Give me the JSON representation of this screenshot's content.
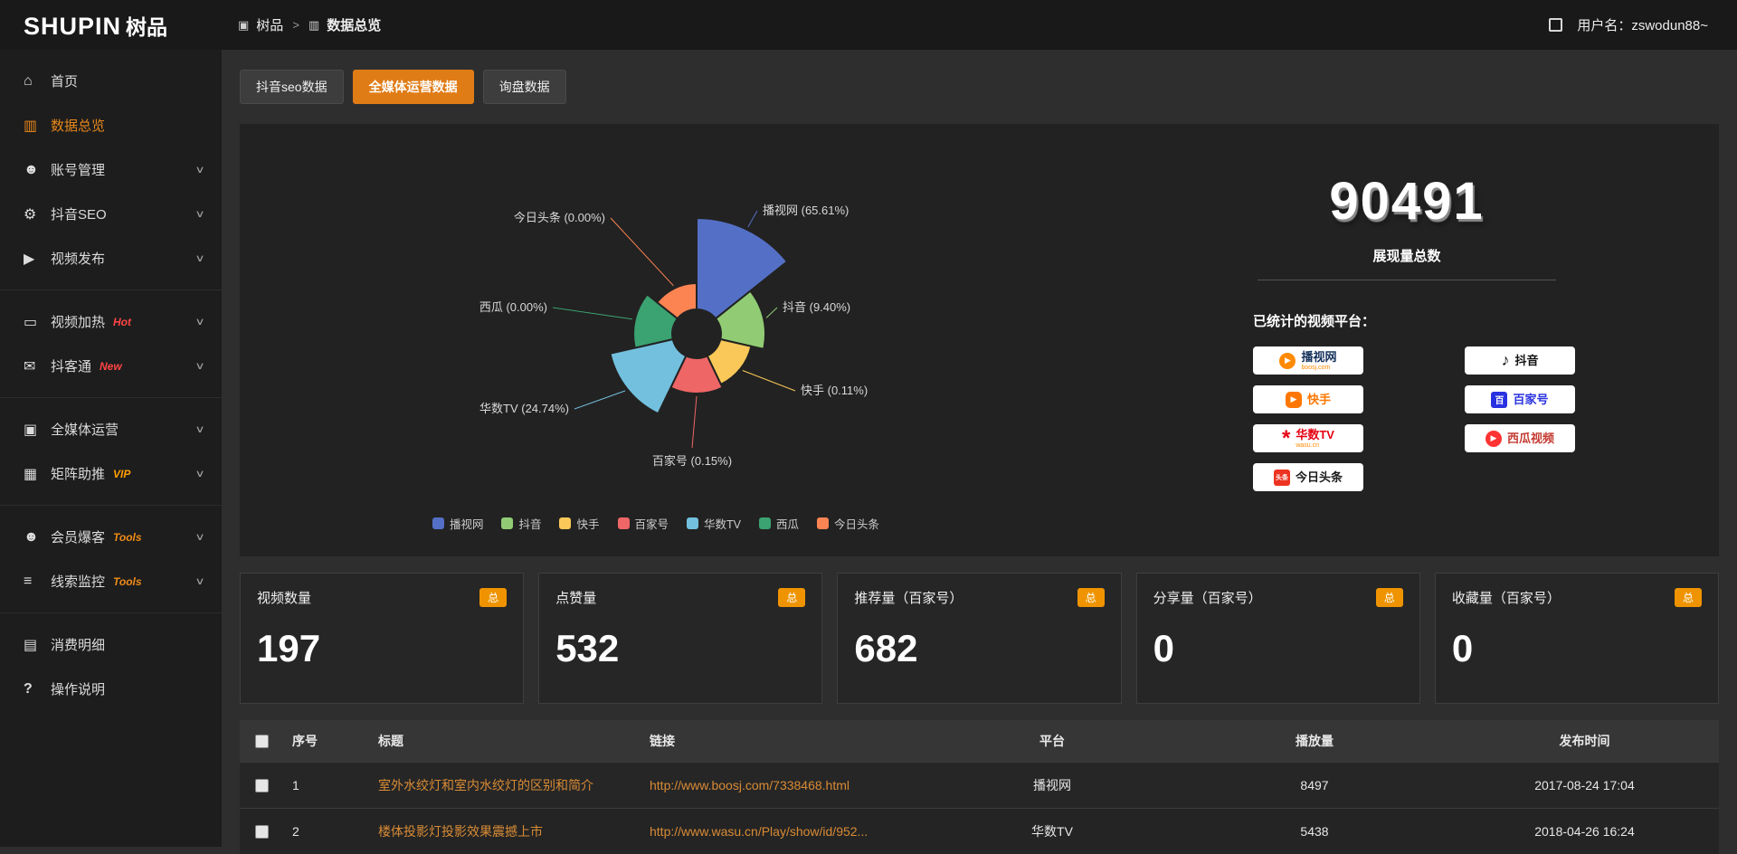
{
  "header": {
    "logo_en": "SHUPIN",
    "logo_cn": "树品",
    "breadcrumb_root": "树品",
    "breadcrumb_current": "数据总览",
    "username_label": "用户名：zswodun88~"
  },
  "sidebar": {
    "groups": [
      [
        {
          "id": "home",
          "label": "首页",
          "icon": "home",
          "active": false,
          "expandable": false
        },
        {
          "id": "data-overview",
          "label": "数据总览",
          "icon": "chart",
          "active": true,
          "expandable": false
        },
        {
          "id": "account-management",
          "label": "账号管理",
          "icon": "user",
          "active": false,
          "expandable": true
        },
        {
          "id": "douyin-seo",
          "label": "抖音SEO",
          "icon": "gear",
          "active": false,
          "expandable": true
        },
        {
          "id": "video-publish",
          "label": "视频发布",
          "icon": "video",
          "active": false,
          "expandable": true
        }
      ],
      [
        {
          "id": "video-heat",
          "label": "视频加热",
          "icon": "monitor",
          "active": false,
          "expandable": true,
          "tag": "Hot",
          "tag_color": "#ff4545"
        },
        {
          "id": "doukertong",
          "label": "抖客通",
          "icon": "chat",
          "active": false,
          "expandable": true,
          "tag": "New",
          "tag_color": "#ff4545"
        }
      ],
      [
        {
          "id": "media-operation",
          "label": "全媒体运营",
          "icon": "media",
          "active": false,
          "expandable": true
        },
        {
          "id": "matrix-boost",
          "label": "矩阵助推",
          "icon": "grid",
          "active": false,
          "expandable": true,
          "tag": "VIP",
          "tag_color": "#ff9d00"
        }
      ],
      [
        {
          "id": "member-burst",
          "label": "会员爆客",
          "icon": "users",
          "active": false,
          "expandable": true,
          "tag": "Tools",
          "tag_color": "#ef8b17"
        },
        {
          "id": "leads-monitor",
          "label": "线索监控",
          "icon": "filter",
          "active": false,
          "expandable": true,
          "tag": "Tools",
          "tag_color": "#ef8b17"
        }
      ],
      [
        {
          "id": "consume-detail",
          "label": "消费明细",
          "icon": "doc",
          "active": false,
          "expandable": false
        },
        {
          "id": "help",
          "label": "操作说明",
          "icon": "help",
          "active": false,
          "expandable": false
        }
      ]
    ]
  },
  "tabs": [
    {
      "id": "douyin-seo-data",
      "label": "抖音seo数据",
      "active": false
    },
    {
      "id": "media-operation-data",
      "label": "全媒体运营数据",
      "active": true
    },
    {
      "id": "inquiry-data",
      "label": "询盘数据",
      "active": false
    }
  ],
  "chart_data": {
    "type": "pie",
    "style": "rose",
    "legend_position": "bottom",
    "categories": [
      "播视网",
      "抖音",
      "快手",
      "百家号",
      "华数TV",
      "西瓜",
      "今日头条"
    ],
    "values": [
      65.61,
      9.4,
      0.11,
      0.15,
      24.74,
      0.0,
      0.0
    ],
    "unit": "%",
    "colors": [
      "#5470c6",
      "#91cc75",
      "#fac858",
      "#ee6666",
      "#73c0de",
      "#3ba272",
      "#fc8452"
    ],
    "labels": [
      "播视网 (65.61%)",
      "抖音 (9.40%)",
      "快手 (0.11%)",
      "百家号 (0.15%)",
      "华数TV (24.74%)",
      "西瓜 (0.00%)",
      "今日头条 (0.00%)"
    ]
  },
  "summary": {
    "total_value": "90491",
    "total_label": "展现量总数",
    "platforms_title": "已统计的视频平台：",
    "platforms": [
      {
        "name": "播视网",
        "sub": "boosj.com",
        "icon": "boosj",
        "text_color": "#16325c"
      },
      {
        "name": "快手",
        "icon": "kuaishou",
        "text_color": "#ff7700"
      },
      {
        "name": "华数TV",
        "sub": "wasu.cn",
        "icon": "wasu",
        "text_color": "#e60012"
      },
      {
        "name": "今日头条",
        "icon": "toutiao",
        "text_color": "#1b1b1b"
      },
      {
        "name": "抖音",
        "icon": "douyin",
        "text_color": "#121212"
      },
      {
        "name": "百家号",
        "icon": "baijiahao",
        "text_color": "#2932e1"
      },
      {
        "name": "西瓜视频",
        "icon": "xigua",
        "text_color": "#c43c33"
      }
    ]
  },
  "stat_cards": [
    {
      "id": "video-count",
      "title": "视频数量",
      "badge": "总",
      "value": "197"
    },
    {
      "id": "like-count",
      "title": "点赞量",
      "badge": "总",
      "value": "532"
    },
    {
      "id": "recommend-count",
      "title": "推荐量（百家号）",
      "badge": "总",
      "value": "682"
    },
    {
      "id": "share-count",
      "title": "分享量（百家号）",
      "badge": "总",
      "value": "0"
    },
    {
      "id": "favorite-count",
      "title": "收藏量（百家号）",
      "badge": "总",
      "value": "0"
    }
  ],
  "table": {
    "headers": [
      "序号",
      "标题",
      "链接",
      "平台",
      "播放量",
      "发布时间"
    ],
    "rows": [
      {
        "index": "1",
        "title": "室外水绞灯和室内水绞灯的区别和简介",
        "link": "http://www.boosj.com/7338468.html",
        "platform": "播视网",
        "plays": "8497",
        "time": "2017-08-24 17:04"
      },
      {
        "index": "2",
        "title": "楼体投影灯投影效果震撼上市",
        "link": "http://www.wasu.cn/Play/show/id/952...",
        "platform": "华数TV",
        "plays": "5438",
        "time": "2018-04-26 16:24"
      }
    ]
  }
}
